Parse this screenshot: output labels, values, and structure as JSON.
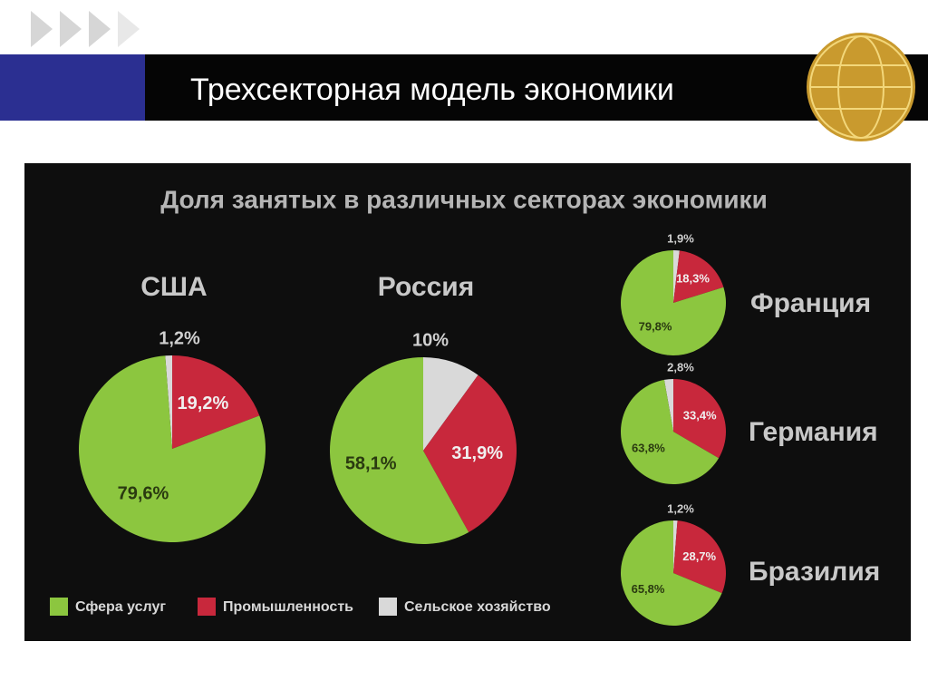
{
  "slide": {
    "title": "Трехсекторная модель экономики",
    "chart_title": "Доля занятых в различных секторах экономики"
  },
  "chart_data": [
    {
      "type": "pie",
      "title": "США",
      "categories": [
        "Сфера услуг",
        "Промышленность",
        "Сельское хозяйство"
      ],
      "values": [
        79.6,
        19.2,
        1.2
      ],
      "value_labels": [
        "79,6%",
        "19,2%",
        "1,2%"
      ],
      "colors": [
        "#8cc63f",
        "#c8283c",
        "#d9d9d9"
      ]
    },
    {
      "type": "pie",
      "title": "Россия",
      "categories": [
        "Сфера услуг",
        "Промышленность",
        "Сельское хозяйство"
      ],
      "values": [
        58.1,
        31.9,
        10
      ],
      "value_labels": [
        "58,1%",
        "31,9%",
        "10%"
      ],
      "colors": [
        "#8cc63f",
        "#c8283c",
        "#d9d9d9"
      ]
    },
    {
      "type": "pie",
      "title": "Франция",
      "categories": [
        "Сфера услуг",
        "Промышленность",
        "Сельское хозяйство"
      ],
      "values": [
        79.8,
        18.3,
        1.9
      ],
      "value_labels": [
        "79,8%",
        "18,3%",
        "1,9%"
      ],
      "colors": [
        "#8cc63f",
        "#c8283c",
        "#d9d9d9"
      ]
    },
    {
      "type": "pie",
      "title": "Германия",
      "categories": [
        "Сфера услуг",
        "Промышленность",
        "Сельское хозяйство"
      ],
      "values": [
        63.8,
        33.4,
        2.8
      ],
      "value_labels": [
        "63,8%",
        "33,4%",
        "2,8%"
      ],
      "colors": [
        "#8cc63f",
        "#c8283c",
        "#d9d9d9"
      ]
    },
    {
      "type": "pie",
      "title": "Бразилия",
      "categories": [
        "Сфера услуг",
        "Промышленность",
        "Сельское хозяйство"
      ],
      "values": [
        65.8,
        28.7,
        1.2
      ],
      "value_labels": [
        "65,8%",
        "28,7%",
        "1,2%"
      ],
      "colors": [
        "#8cc63f",
        "#c8283c",
        "#d9d9d9"
      ]
    }
  ]
}
